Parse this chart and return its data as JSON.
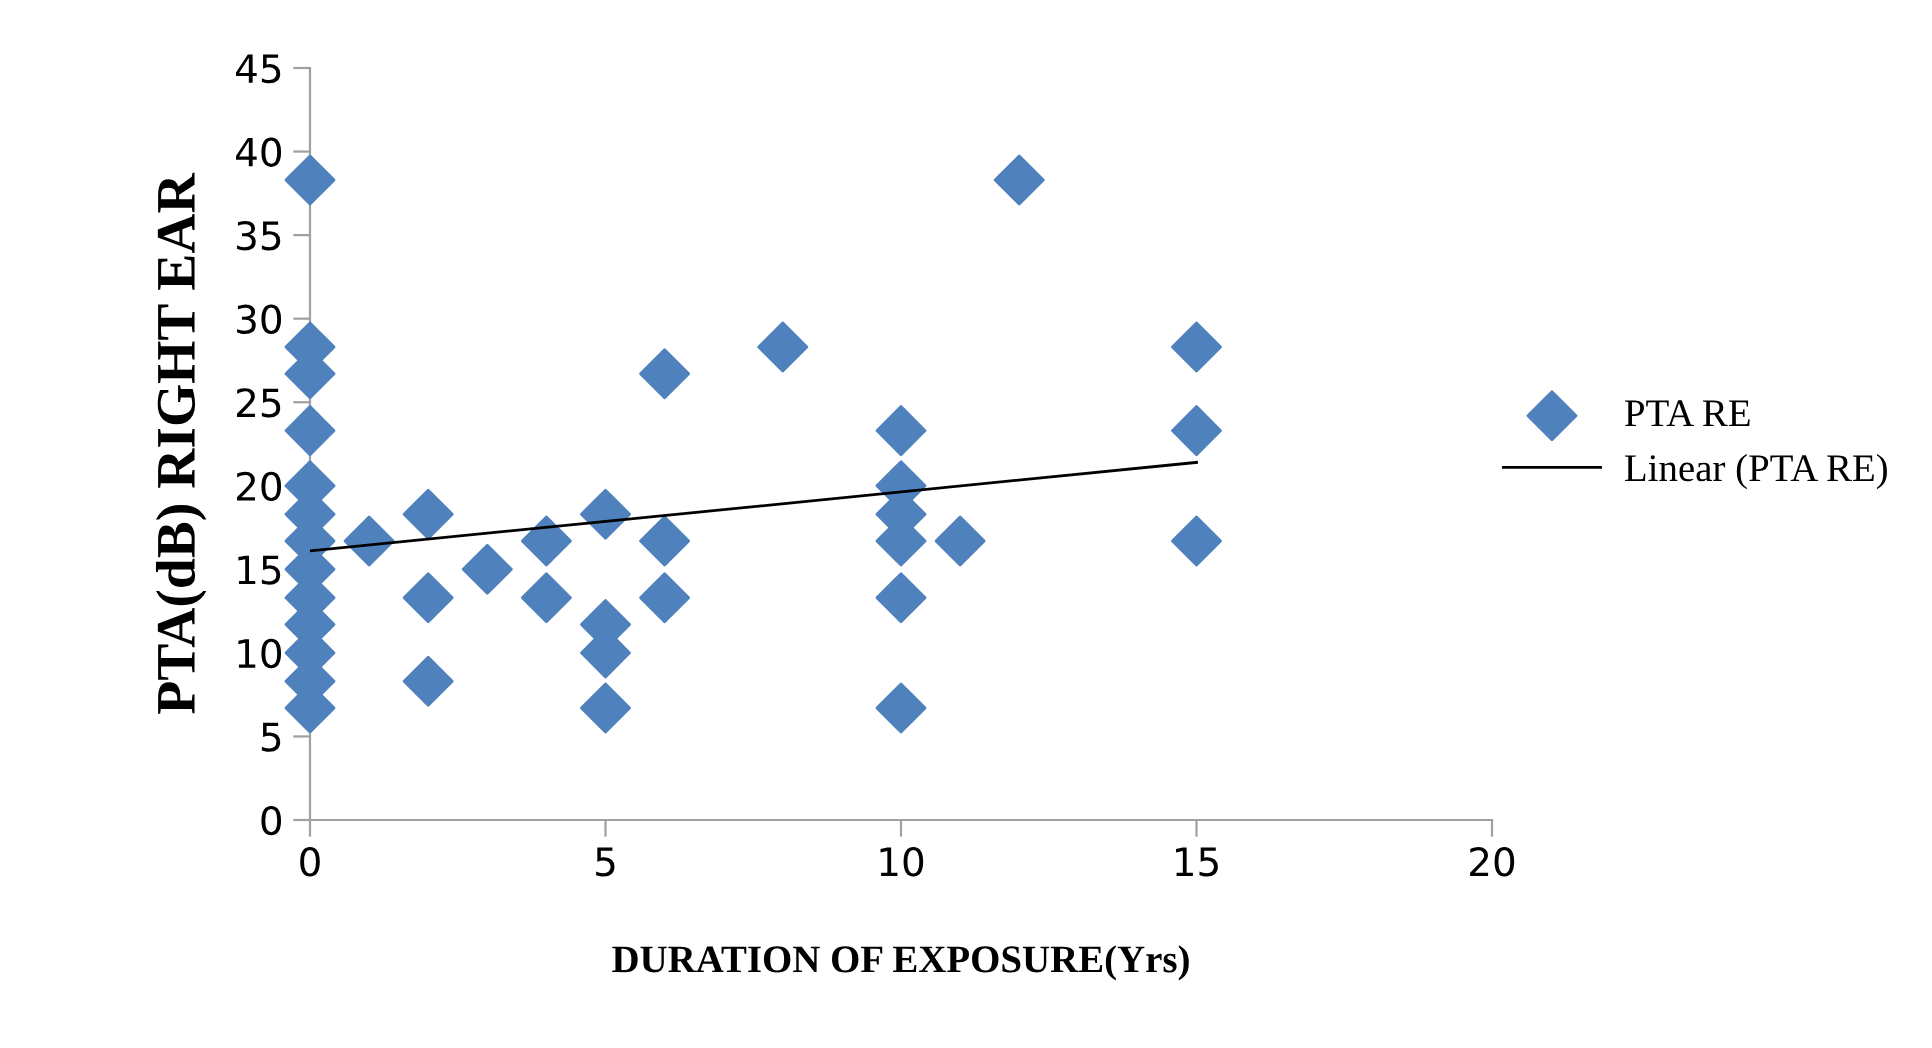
{
  "chart_data": {
    "type": "scatter",
    "xlabel": "DURATION OF EXPOSURE(Yrs)",
    "ylabel": "PTA(dB) RIGHT EAR",
    "xlim": [
      0,
      20
    ],
    "xticks": [
      0,
      5,
      10,
      15,
      20
    ],
    "ylim": [
      0,
      45
    ],
    "yticks": [
      0,
      5,
      10,
      15,
      20,
      25,
      30,
      35,
      40,
      45
    ],
    "grid": false,
    "legend": "right",
    "marker": "diamond",
    "series": [
      {
        "name": "PTA RE",
        "color": "#4f81bd",
        "x": [
          0,
          0,
          0,
          0,
          0,
          0,
          0,
          0,
          0,
          0,
          0,
          0,
          0,
          1,
          2,
          2,
          2,
          3,
          4,
          4,
          5,
          5,
          5,
          5,
          6,
          6,
          6,
          8,
          10,
          10,
          10,
          10,
          10,
          10,
          11,
          12,
          15,
          15,
          15
        ],
        "values": [
          38.3,
          28.3,
          26.7,
          23.3,
          20,
          18.3,
          16.7,
          15,
          13.3,
          11.7,
          10,
          8.3,
          6.7,
          16.7,
          18.3,
          13.3,
          8.3,
          15,
          16.7,
          13.3,
          18.3,
          11.7,
          10,
          6.7,
          26.7,
          16.7,
          13.3,
          28.3,
          23.3,
          20,
          18.3,
          16.7,
          13.3,
          6.7,
          16.7,
          38.3,
          28.3,
          23.3,
          16.7
        ]
      },
      {
        "name": "Linear (PTA RE)",
        "color": "#000000",
        "type": "line",
        "marker": "none",
        "x": [
          0,
          15
        ],
        "values": [
          16.1,
          21.4
        ]
      }
    ]
  }
}
